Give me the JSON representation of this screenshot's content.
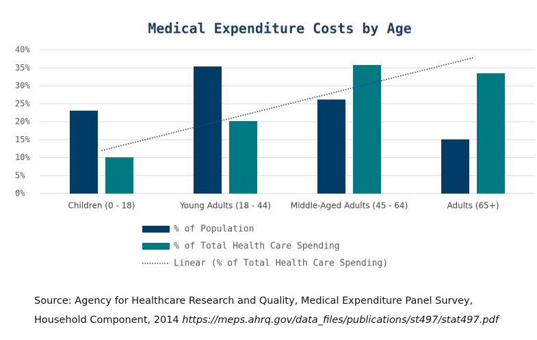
{
  "chart_data": {
    "type": "bar",
    "title": "Medical Expenditure Costs by Age",
    "categories": [
      "Children (0 - 18)",
      "Young Adults (18 - 44)",
      "Middle-Aged Adults (45 - 64)",
      "Adults (65+)"
    ],
    "series": [
      {
        "name": "% of Population",
        "color": "#003c68",
        "values": [
          23.1,
          35.4,
          26.2,
          15.1
        ]
      },
      {
        "name": "% of Total Health Care Spending",
        "color": "#007a82",
        "values": [
          10.1,
          20.2,
          35.8,
          33.5
        ]
      },
      {
        "name": "Linear (% of Total Health Care Spending)",
        "color": "#3b3b8c",
        "type": "line",
        "dash": "dotted",
        "values": [
          12.0,
          20.6,
          29.2,
          37.8
        ]
      }
    ],
    "ylim": [
      0,
      40
    ],
    "yticks": [
      {
        "value": 0,
        "label": "0%"
      },
      {
        "value": 5,
        "label": "5%"
      },
      {
        "value": 10,
        "label": "10%"
      },
      {
        "value": 15,
        "label": "15%"
      },
      {
        "value": 20,
        "label": "20%"
      },
      {
        "value": 25,
        "label": "25%"
      },
      {
        "value": 30,
        "label": "30%"
      },
      {
        "value": 35,
        "label": "35%"
      },
      {
        "value": 40,
        "label": "40%"
      }
    ],
    "grid": true,
    "source": "Source: Agency for Healthcare Research and Quality, Medical Expenditure Panel Survey,  Household Component, 2014",
    "source_link": "https://meps.ahrq.gov/data_files/publications/st497/stat497.pdf"
  }
}
